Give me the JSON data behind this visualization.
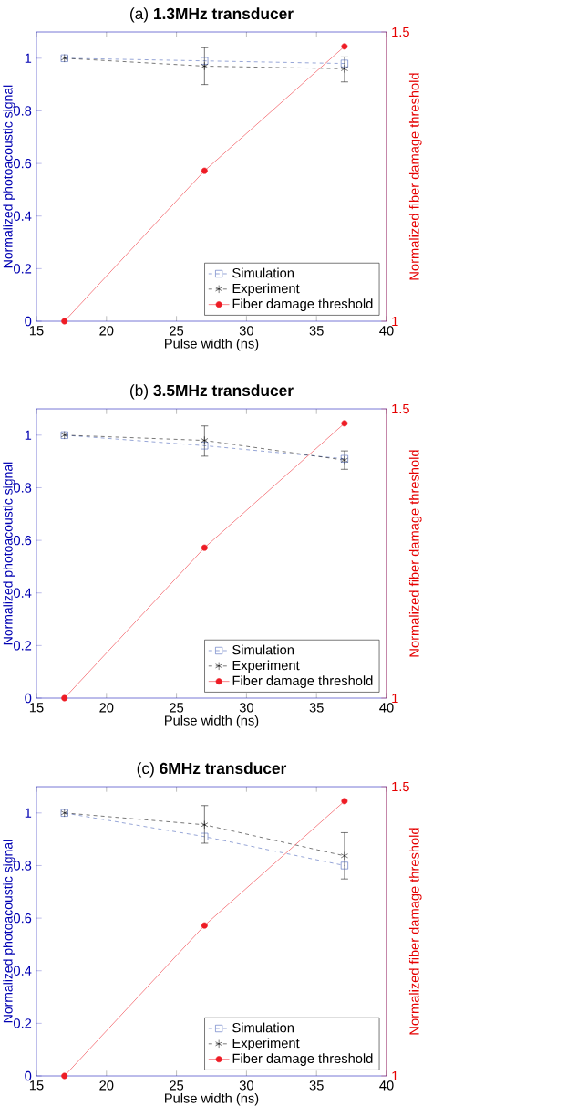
{
  "chart_data": [
    {
      "type": "line",
      "title": "(a) **1.3MHz transducer**",
      "xlabel": "Pulse width (ns)",
      "ylabel": "Normalized photoacoustic signal",
      "y2label": "Normalized fiber damage threshold",
      "x": [
        17,
        27,
        37
      ],
      "xlim": [
        15,
        40
      ],
      "xticks": [
        15,
        20,
        25,
        30,
        35,
        40
      ],
      "ylim": [
        0,
        1.1
      ],
      "yticks": [
        0,
        0.2,
        0.4,
        0.6,
        0.8,
        1
      ],
      "y2lim": [
        1,
        1.5
      ],
      "y2ticks": [
        1,
        1.5
      ],
      "grid": false,
      "legend": "bottom right",
      "series": [
        {
          "name": "Simulation",
          "color": "#3a56b4",
          "values": [
            1,
            0.99,
            0.98
          ],
          "marker": "square",
          "line_style": "dashed"
        },
        {
          "name": "Experiment",
          "color": "#000000",
          "values": [
            1,
            0.97,
            0.96
          ],
          "errors": [
            null,
            [
              0.9,
              1.04
            ],
            [
              0.91,
              1.005
            ]
          ],
          "marker": "cross",
          "line_style": "dashed"
        },
        {
          "name": "Fiber damage threshold",
          "color": "#ee1c25",
          "values": [
            1,
            1.26,
            1.475
          ],
          "axis": "y2",
          "marker": "circle",
          "line_style": "solid"
        }
      ]
    },
    {
      "type": "line",
      "title": "(b) **3.5MHz transducer**",
      "xlabel": "Pulse width (ns)",
      "ylabel": "Normalized photoacoustic signal",
      "y2label": "Normalized fiber damage threshold",
      "x": [
        17,
        27,
        37
      ],
      "xlim": [
        15,
        40
      ],
      "xticks": [
        15,
        20,
        25,
        30,
        35,
        40
      ],
      "ylim": [
        0,
        1.1
      ],
      "yticks": [
        0,
        0.2,
        0.4,
        0.6,
        0.8,
        1
      ],
      "y2lim": [
        1,
        1.5
      ],
      "y2ticks": [
        1,
        1.5
      ],
      "grid": false,
      "legend": "bottom right",
      "series": [
        {
          "name": "Simulation",
          "color": "#3a56b4",
          "values": [
            1,
            0.96,
            0.91
          ],
          "marker": "square",
          "line_style": "dashed"
        },
        {
          "name": "Experiment",
          "color": "#000000",
          "values": [
            1,
            0.98,
            0.905
          ],
          "errors": [
            null,
            [
              0.92,
              1.035
            ],
            [
              0.87,
              0.94
            ]
          ],
          "marker": "cross",
          "line_style": "dashed"
        },
        {
          "name": "Fiber damage threshold",
          "color": "#ee1c25",
          "values": [
            1,
            1.26,
            1.475
          ],
          "axis": "y2",
          "marker": "circle",
          "line_style": "solid"
        }
      ]
    },
    {
      "type": "line",
      "title": "(c) **6MHz transducer**",
      "xlabel": "Pulse width (ns)",
      "ylabel": "Normalized photoacoustic signal",
      "y2label": "Normalized fiber damage threshold",
      "x": [
        17,
        27,
        37
      ],
      "xlim": [
        15,
        40
      ],
      "xticks": [
        15,
        20,
        25,
        30,
        35,
        40
      ],
      "ylim": [
        0,
        1.1
      ],
      "yticks": [
        0,
        0.2,
        0.4,
        0.6,
        0.8,
        1
      ],
      "y2lim": [
        1,
        1.5
      ],
      "y2ticks": [
        1,
        1.5
      ],
      "grid": false,
      "legend": "bottom right",
      "series": [
        {
          "name": "Simulation",
          "color": "#3a56b4",
          "values": [
            1,
            0.91,
            0.8
          ],
          "marker": "square",
          "line_style": "dashed"
        },
        {
          "name": "Experiment",
          "color": "#000000",
          "values": [
            1,
            0.955,
            0.837
          ],
          "errors": [
            null,
            [
              0.885,
              1.028
            ],
            [
              0.749,
              0.925
            ]
          ],
          "marker": "cross",
          "line_style": "dashed"
        },
        {
          "name": "Fiber damage threshold",
          "color": "#ee1c25",
          "values": [
            1,
            1.26,
            1.475
          ],
          "axis": "y2",
          "marker": "circle",
          "line_style": "solid"
        }
      ]
    }
  ]
}
